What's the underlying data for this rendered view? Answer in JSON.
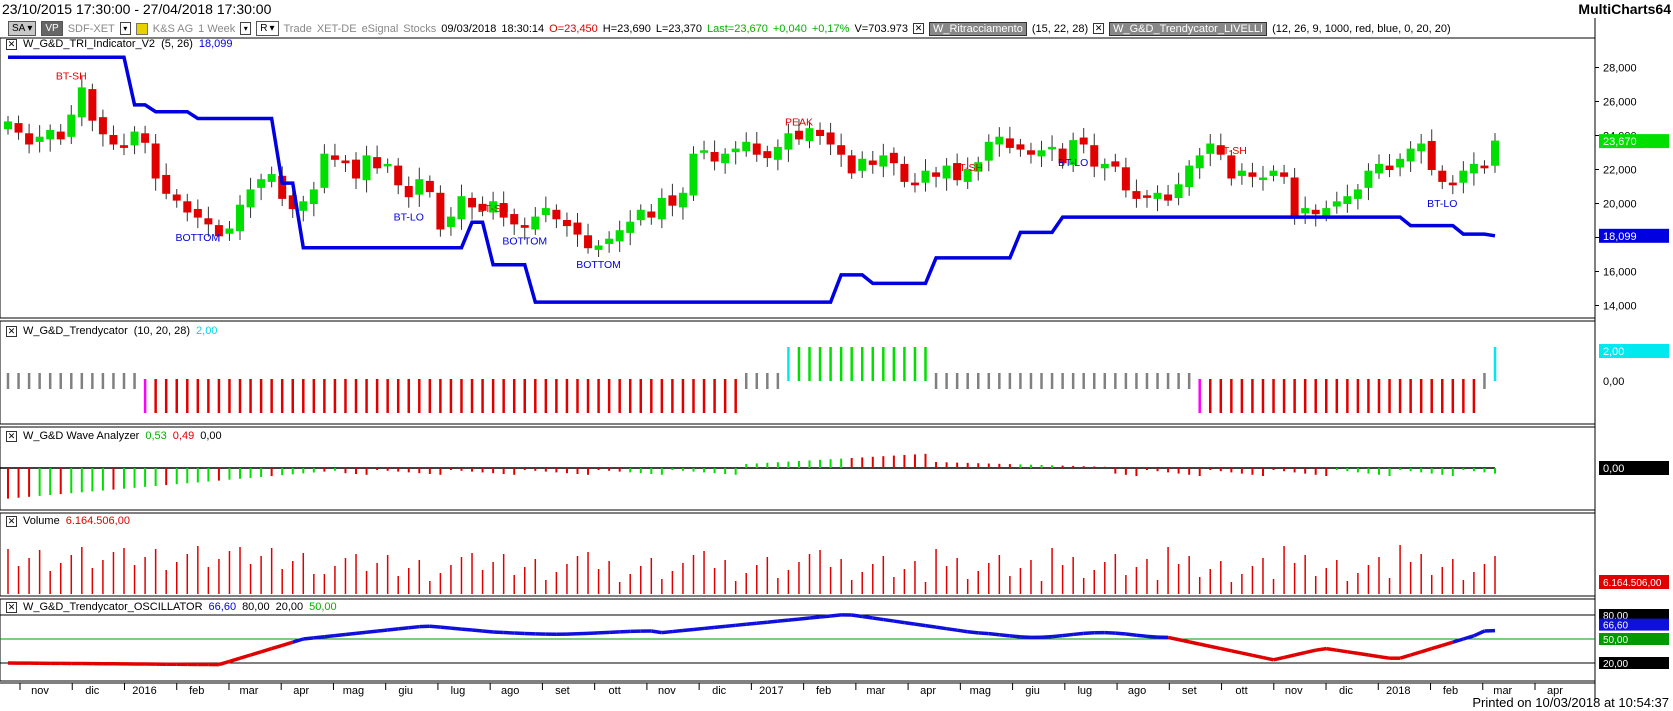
{
  "window": {
    "date_range": "23/10/2015 17:30:00 - 27/04/2018 17:30:00",
    "app_name": "MultiCharts64"
  },
  "toolbar": {
    "symbol_btn": "SA",
    "vp_btn": "VP",
    "symbol": "SDF-XET",
    "company": "K&S AG",
    "timeframe": "1 Week",
    "type_btn": "R",
    "trade_label": "Trade",
    "exchange": "XET-DE",
    "feed": "eSignal",
    "category": "Stocks",
    "date": "09/03/2018",
    "time": "18:30:14",
    "open": "O=23,450",
    "high": "H=23,690",
    "low": "L=23,370",
    "last": "Last=23,670",
    "change": "+0,040",
    "change_pct": "+0,17%",
    "volume": "V=703.973",
    "study1_name": "W_Ritracciamento",
    "study1_params": "(15, 22, 28)",
    "study2_name": "W_G&D_Trendycator_LIVELLI",
    "study2_params": "(12, 26, 9, 1000, red, blue, 0, 20, 20)"
  },
  "panes": {
    "main": {
      "name": "W_G&D_TRI_Indicator_V2",
      "params": "(5, 26)",
      "value": "18,099"
    },
    "trendycator": {
      "name": "W_G&D_Trendycator",
      "params": "(10, 20, 28)",
      "value": "2,00"
    },
    "wave": {
      "name": "W_G&D Wave Analyzer",
      "v1": "0,53",
      "v2": "0,49",
      "v3": "0,00"
    },
    "volume": {
      "name": "Volume",
      "value": "6.164.506,00"
    },
    "oscillator": {
      "name": "W_G&D_Trendycator_OSCILLATOR",
      "v1": "66,60",
      "v2": "80,00",
      "v3": "20,00",
      "v4": "50,00"
    }
  },
  "axes": {
    "main_ticks": [
      "28,000",
      "26,000",
      "24,000",
      "22,000",
      "20,000",
      "18,000",
      "16,000",
      "14,000"
    ],
    "main_ticks_values": [
      28,
      26,
      24,
      22,
      20,
      18,
      16,
      14
    ],
    "main_last_label": "23,670",
    "main_stop_label": "18,099",
    "trend_tick": "0,00",
    "trend_label": "2,00",
    "wave_label": "0,00",
    "volume_label": "6.164.506,00",
    "osc_labels": {
      "v80": "80,00",
      "v66": "66,60",
      "v50": "50,00",
      "v20": "20,00"
    },
    "time_labels": [
      "nov",
      "dic",
      "2016",
      "feb",
      "mar",
      "apr",
      "mag",
      "giu",
      "lug",
      "ago",
      "set",
      "ott",
      "nov",
      "dic",
      "2017",
      "feb",
      "mar",
      "apr",
      "mag",
      "giu",
      "lug",
      "ago",
      "set",
      "ott",
      "nov",
      "dic",
      "2018",
      "feb",
      "mar",
      "apr"
    ]
  },
  "annotations": [
    {
      "text": "BT-SH",
      "color": "#e00000",
      "bar": 6,
      "price": 27.3
    },
    {
      "text": "BOTTOM",
      "color": "#0000e0",
      "bar": 18,
      "price": 17.8
    },
    {
      "text": "BT-LO",
      "color": "#0000e0",
      "bar": 38,
      "price": 19.0
    },
    {
      "text": "BT-SH",
      "color": "#e00000",
      "bar": 46,
      "price": 19.5
    },
    {
      "text": "BOTTOM",
      "color": "#0000e0",
      "bar": 49,
      "price": 17.6
    },
    {
      "text": "BOTTOM",
      "color": "#0000e0",
      "bar": 56,
      "price": 16.2
    },
    {
      "text": "PEAK",
      "color": "#e00000",
      "bar": 75,
      "price": 24.6
    },
    {
      "text": "BT-SH",
      "color": "#e00000",
      "bar": 91,
      "price": 21.9
    },
    {
      "text": "BT-LO",
      "color": "#0000e0",
      "bar": 101,
      "price": 22.2
    },
    {
      "text": "BT-SH",
      "color": "#e00000",
      "bar": 116,
      "price": 22.9
    },
    {
      "text": "BT-LO",
      "color": "#0000e0",
      "bar": 136,
      "price": 19.8
    }
  ],
  "footer": {
    "printed": "Printed on 10/03/2018 at 10:54:37"
  },
  "colors": {
    "up": "#00e000",
    "down": "#e00000",
    "stop": "#0000e0",
    "neutral": "#808080",
    "magenta": "#ff00ff",
    "cyan": "#00e8f0"
  },
  "chart_data": {
    "type": "candlestick",
    "series_close": [
      24.8,
      24.2,
      23.5,
      23.9,
      24.3,
      23.8,
      25.2,
      26.8,
      24.9,
      24.1,
      23.5,
      23.3,
      24.2,
      23.6,
      21.5,
      20.6,
      20.2,
      19.5,
      19.2,
      18.8,
      18.1,
      18.5,
      19.9,
      20.8,
      21.4,
      21.7,
      20.3,
      19.7,
      20.1,
      20.8,
      22.9,
      22.6,
      22.4,
      21.5,
      22.8,
      22.1,
      22.3,
      21.1,
      20.4,
      21.4,
      20.7,
      18.5,
      19.2,
      20.4,
      19.8,
      19.6,
      20.1,
      19.2,
      18.8,
      18.6,
      19.2,
      19.7,
      19.1,
      18.7,
      18.2,
      17.4,
      17.5,
      17.9,
      18.4,
      18.9,
      19.6,
      19.2,
      20.3,
      19.9,
      20.6,
      22.9,
      23.1,
      22.5,
      22.9,
      23.2,
      23.6,
      22.9,
      22.7,
      23.3,
      24.1,
      23.8,
      24.4,
      24.0,
      23.5,
      22.9,
      21.8,
      22.6,
      22.3,
      22.8,
      22.4,
      21.3,
      21.1,
      21.9,
      21.6,
      22.2,
      21.4,
      22.0,
      22.4,
      23.6,
      23.9,
      23.3,
      23.2,
      22.9,
      23.1,
      23.3,
      22.4,
      23.7,
      23.5,
      22.2,
      22.3,
      22.2,
      20.8,
      20.3,
      20.4,
      20.6,
      20.2,
      21.1,
      22.2,
      22.8,
      23.5,
      22.9,
      21.5,
      21.9,
      21.6,
      21.5,
      21.9,
      21.6,
      19.3,
      19.7,
      19.4,
      19.7,
      20.1,
      20.4,
      20.8,
      21.9,
      22.3,
      22.0,
      22.6,
      23.2,
      23.5,
      22.0,
      21.3,
      21.1,
      21.9,
      22.3,
      22.1,
      23.67
    ],
    "ylim": [
      13.5,
      29.5
    ]
  }
}
